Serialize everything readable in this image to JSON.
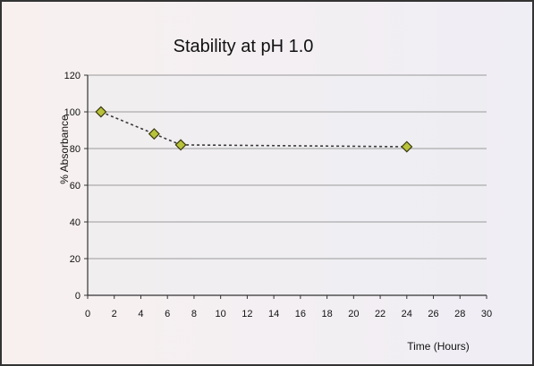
{
  "chart_data": {
    "type": "scatter",
    "title": "Stability at pH 1.0",
    "xlabel": "Time (Hours)",
    "ylabel": "% Absorbance",
    "xlim": [
      0,
      30
    ],
    "ylim": [
      0,
      120
    ],
    "xticks": [
      "0",
      "2",
      "4",
      "6",
      "8",
      "10",
      "12",
      "14",
      "16",
      "18",
      "20",
      "22",
      "24",
      "26",
      "28",
      "30"
    ],
    "yticks": [
      "0",
      "20",
      "40",
      "60",
      "80",
      "100",
      "120"
    ],
    "grid": "horizontal",
    "legend": "none",
    "series": [
      {
        "x": [
          1,
          5,
          7,
          24
        ],
        "y": [
          100,
          88,
          82,
          81
        ],
        "color": "#b8c23a",
        "marker_edge": "#3a3a10",
        "line": "dashed"
      }
    ]
  }
}
